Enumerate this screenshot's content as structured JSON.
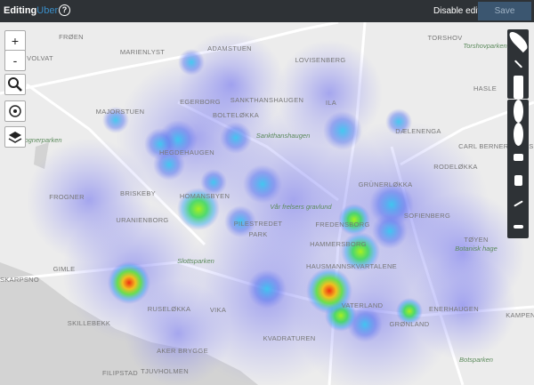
{
  "header": {
    "title": "Editing",
    "map_name": "Uber",
    "help": "?",
    "disable": "Disable editing",
    "save": "Save"
  },
  "zoom": {
    "in": "+",
    "out": "-"
  },
  "map": {
    "labels": [
      "FRØEN",
      "MARIENLYST",
      "ADAMSTUEN",
      "VOLVAT",
      "LOVISENBERG",
      "TORSHOV",
      "Torshovparken",
      "MAJORSTUEN",
      "EGERBORG",
      "BOLTELØKKA",
      "SANKTHANSHAUGEN",
      "ILA",
      "DÆLENENGA",
      "Frognerparken",
      "HEGDEHAUGEN",
      "Sankthanshaugen",
      "RODELØKKA",
      "FROGNER",
      "BRISKEBY",
      "HOMANSBYEN",
      "Vår frelsers gravlund",
      "GRÜNERLØKKA",
      "URANIENBORG",
      "PILESTREDET",
      "PARK",
      "FREDENSBORG",
      "SOFIENBERG",
      "TØYEN",
      "Botanisk hage",
      "HAMMERSBORG",
      "Slottsparken",
      "GIMLE",
      "HAUSMANNSKVARTALENE",
      "SKARPSNO",
      "RUSELØKKA",
      "VIKA",
      "VATERLAND",
      "ENERHAUGEN",
      "KAMPEN",
      "SKILLEBEKK",
      "GRØNLAND",
      "AKER BRYGGE",
      "KVADRATUREN",
      "FILIPSTAD",
      "TJUVHOLMEN",
      "Botsparken",
      "HASLE",
      "CARL BERNERS PLASS"
    ]
  }
}
